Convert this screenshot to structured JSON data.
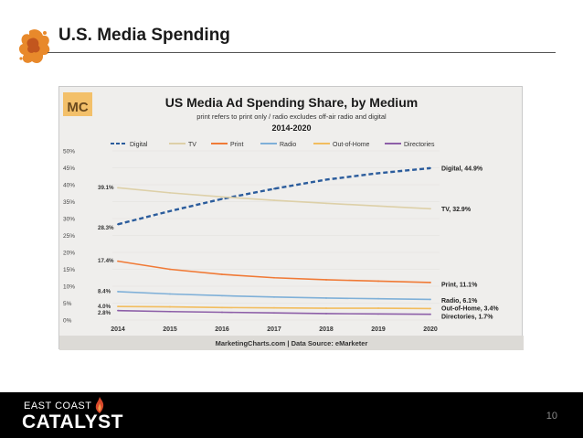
{
  "slide": {
    "title": "U.S. Media Spending",
    "page_number": "10",
    "brand_line1": "EAST COAST",
    "brand_line2": "CATALYST",
    "logo_icon": "orange-splat-icon",
    "accent_color": "#e8892b"
  },
  "chart_data": {
    "type": "line",
    "title": "US Media Ad Spending Share, by Medium",
    "subtitle": "print refers to print only / radio excludes off-air radio and digital",
    "period": "2014-2020",
    "badge": "MC",
    "source": "MarketingCharts.com | Data Source: eMarketer",
    "x": [
      "2014",
      "2015",
      "2016",
      "2017",
      "2018",
      "2019",
      "2020"
    ],
    "y_ticks": [
      "0%",
      "5%",
      "10%",
      "15%",
      "20%",
      "25%",
      "30%",
      "35%",
      "40%",
      "45%",
      "50%"
    ],
    "ylim": [
      0,
      50
    ],
    "series": [
      {
        "name": "Digital",
        "color": "#2b5c9c",
        "dashed": true,
        "values": [
          28.3,
          32.2,
          35.8,
          38.8,
          41.5,
          43.4,
          44.9
        ],
        "start_label": "28.3%",
        "end_label": "Digital, 44.9%"
      },
      {
        "name": "TV",
        "color": "#ddd0a8",
        "dashed": false,
        "values": [
          39.1,
          37.6,
          36.4,
          35.4,
          34.5,
          33.7,
          32.9
        ],
        "start_label": "39.1%",
        "end_label": "TV, 32.9%"
      },
      {
        "name": "Print",
        "color": "#f07a36",
        "dashed": false,
        "values": [
          17.4,
          15.0,
          13.5,
          12.5,
          11.9,
          11.5,
          11.1
        ],
        "start_label": "17.4%",
        "end_label": "Print, 11.1%"
      },
      {
        "name": "Radio",
        "color": "#7fb0d8",
        "dashed": false,
        "values": [
          8.4,
          7.7,
          7.2,
          6.8,
          6.5,
          6.3,
          6.1
        ],
        "start_label": "8.4%",
        "end_label": "Radio, 6.1%"
      },
      {
        "name": "Out-of-Home",
        "color": "#f2bd5e",
        "dashed": false,
        "values": [
          4.0,
          3.9,
          3.7,
          3.6,
          3.5,
          3.5,
          3.4
        ],
        "start_label": "4.0%",
        "end_label": "Out-of-Home, 3.4%"
      },
      {
        "name": "Directories",
        "color": "#8d5fa8",
        "dashed": false,
        "values": [
          2.8,
          2.5,
          2.3,
          2.1,
          1.9,
          1.8,
          1.7
        ],
        "start_label": "2.8%",
        "end_label": "Directories, 1.7%"
      }
    ]
  }
}
